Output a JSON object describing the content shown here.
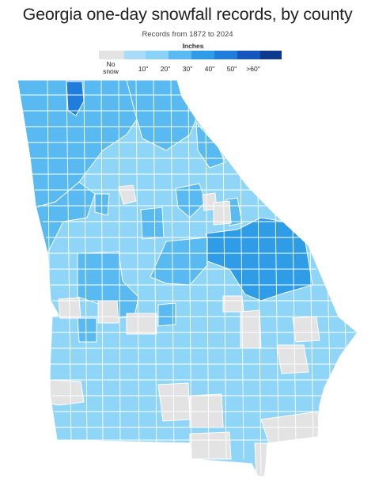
{
  "title": "Georgia one-day snowfall records, by county",
  "subtitle": "Records from 1872 to 2024",
  "legend": {
    "title": "Inches",
    "no_snow_label": "No\nsnow",
    "bins": [
      {
        "label": "No snow",
        "color": "#e3e3e3"
      },
      {
        "label": "",
        "color": "#a9dcf8"
      },
      {
        "label": "10\"",
        "color": "#8ad2f7"
      },
      {
        "label": "20\"",
        "color": "#59b9f0"
      },
      {
        "label": "30\"",
        "color": "#2f9ce8"
      },
      {
        "label": "40\"",
        "color": "#1f7edc"
      },
      {
        "label": "50\"",
        "color": "#1456be"
      },
      {
        "label": ">60\"",
        "color": "#0d3a8f"
      }
    ],
    "tick_labels": [
      "10\"",
      "20\"",
      "30\"",
      "40\"",
      "50\"",
      ">60\""
    ]
  },
  "colors": {
    "no_snow": "#e3e3e3",
    "light": "#8fd5f8",
    "medium": "#58baf1",
    "dark": "#2f9ce8",
    "darkest": "#1f7edc",
    "border": "#ffffff"
  },
  "map": {
    "region": "Georgia",
    "unit": "county"
  }
}
